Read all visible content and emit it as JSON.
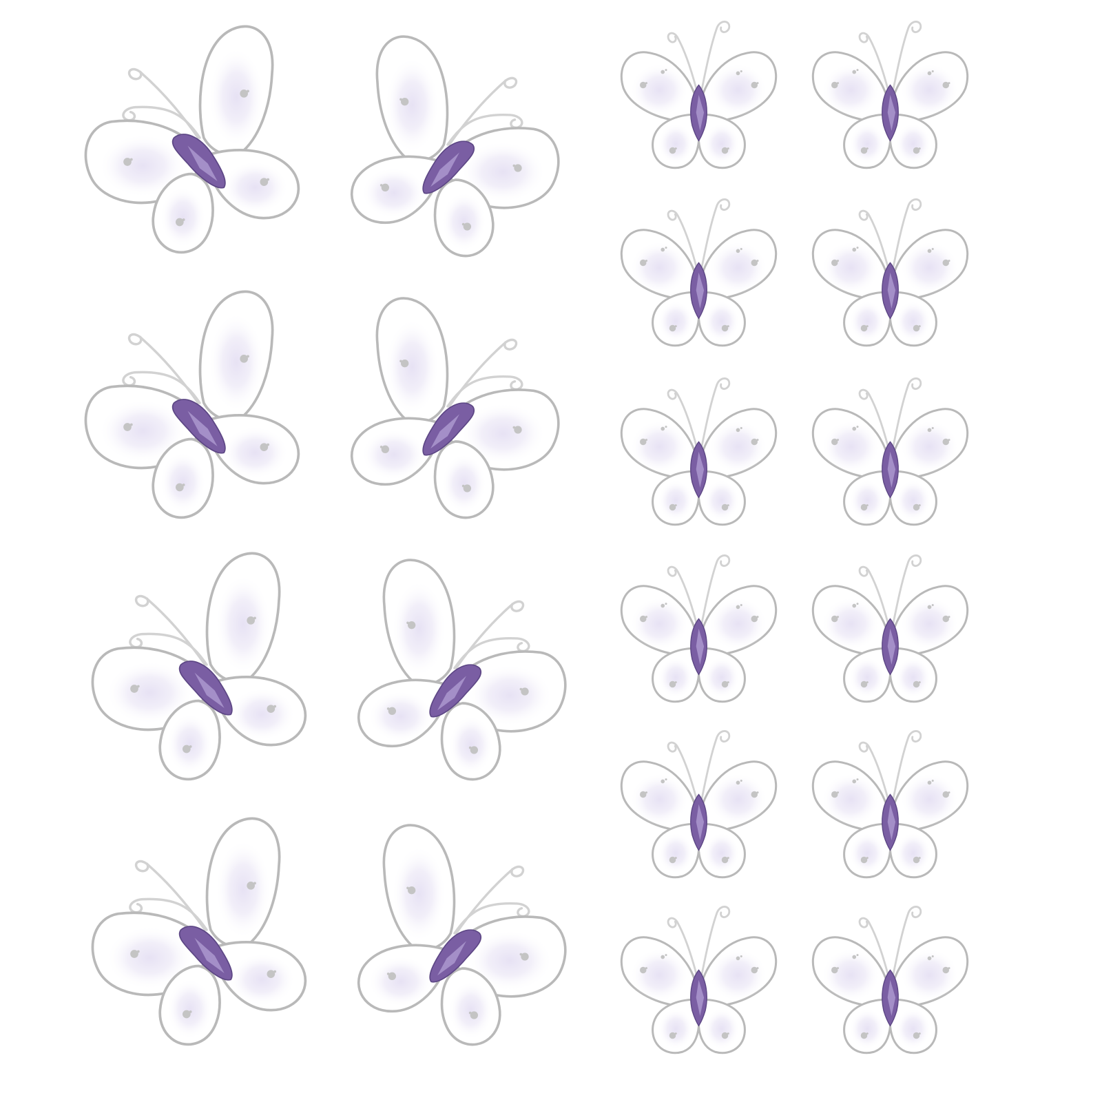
{
  "image": {
    "background_color": "#ffffff",
    "subject": "butterfly-decoration",
    "wing_fill_color": "#ffffff",
    "wing_tint_color": "#e7e2f4",
    "wing_outline_color": "#b9b9b9",
    "glitter_color": "#c4c4c4",
    "gem_color": "#7a5ea3",
    "gem_highlight_color": "#b3a0d4",
    "antenna_color": "#d2d2d2",
    "groups": [
      {
        "name": "large-butterflies",
        "count": 8
      },
      {
        "name": "small-butterflies",
        "count": 12
      }
    ]
  }
}
